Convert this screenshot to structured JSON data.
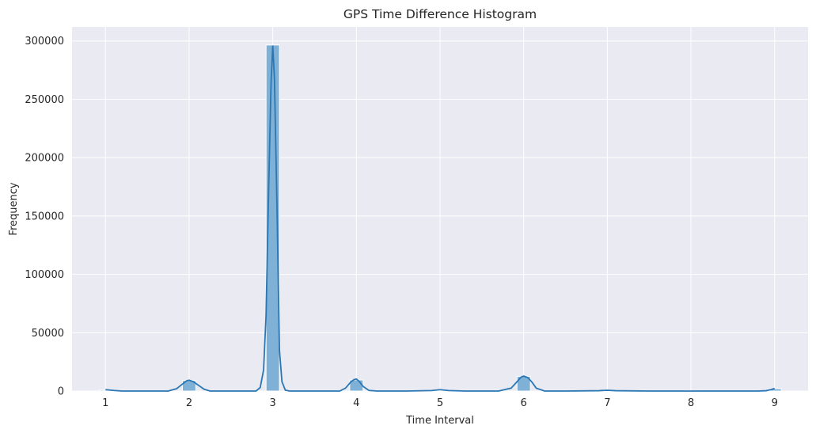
{
  "chart_data": {
    "type": "bar",
    "title": "GPS Time Difference Histogram",
    "xlabel": "Time Interval",
    "ylabel": "Frequency",
    "xlim": [
      0.6,
      9.4
    ],
    "ylim": [
      0,
      312000
    ],
    "grid": true,
    "x_ticks": [
      1,
      2,
      3,
      4,
      5,
      6,
      7,
      8,
      9
    ],
    "y_ticks": [
      0,
      50000,
      100000,
      150000,
      200000,
      250000,
      300000
    ],
    "bin_width": 0.16,
    "bins": [
      {
        "x": 1,
        "count": 800
      },
      {
        "x": 2,
        "count": 9000
      },
      {
        "x": 3,
        "count": 296500
      },
      {
        "x": 4,
        "count": 9500
      },
      {
        "x": 5,
        "count": 700
      },
      {
        "x": 6,
        "count": 12500
      },
      {
        "x": 7,
        "count": 500
      },
      {
        "x": 8,
        "count": 300
      },
      {
        "x": 9,
        "count": 2000
      }
    ],
    "kde": {
      "x": [
        1.0,
        1.1,
        1.2,
        1.5,
        1.75,
        1.85,
        1.92,
        1.97,
        2.0,
        2.05,
        2.1,
        2.18,
        2.25,
        2.5,
        2.8,
        2.85,
        2.89,
        2.92,
        2.95,
        2.98,
        3.0,
        3.02,
        3.05,
        3.08,
        3.11,
        3.15,
        3.2,
        3.3,
        3.5,
        3.8,
        3.87,
        3.93,
        3.97,
        4.0,
        4.03,
        4.08,
        4.15,
        4.25,
        4.6,
        4.9,
        5.0,
        5.1,
        5.3,
        5.7,
        5.85,
        5.92,
        5.97,
        6.0,
        6.05,
        6.1,
        6.15,
        6.25,
        6.5,
        6.9,
        7.0,
        7.1,
        7.5,
        8.0,
        8.5,
        8.8,
        8.9,
        8.95,
        9.0
      ],
      "y": [
        1200,
        500,
        0,
        0,
        0,
        2000,
        6000,
        8800,
        9300,
        8000,
        5500,
        1500,
        0,
        0,
        0,
        3000,
        18000,
        65000,
        170000,
        265000,
        296000,
        268000,
        160000,
        35000,
        8000,
        800,
        0,
        0,
        0,
        0,
        2500,
        7500,
        9800,
        10300,
        8500,
        4000,
        500,
        0,
        0,
        400,
        1200,
        400,
        0,
        0,
        2500,
        8000,
        12000,
        12800,
        11500,
        7500,
        2500,
        0,
        0,
        300,
        700,
        300,
        0,
        0,
        0,
        0,
        300,
        1200,
        2200
      ]
    },
    "colors": {
      "bar_fill": "#7fb0d5",
      "bar_edge": "#ffffff",
      "line": "#2a77b4",
      "plot_bg": "#eaeaf2",
      "grid": "#ffffff"
    }
  }
}
